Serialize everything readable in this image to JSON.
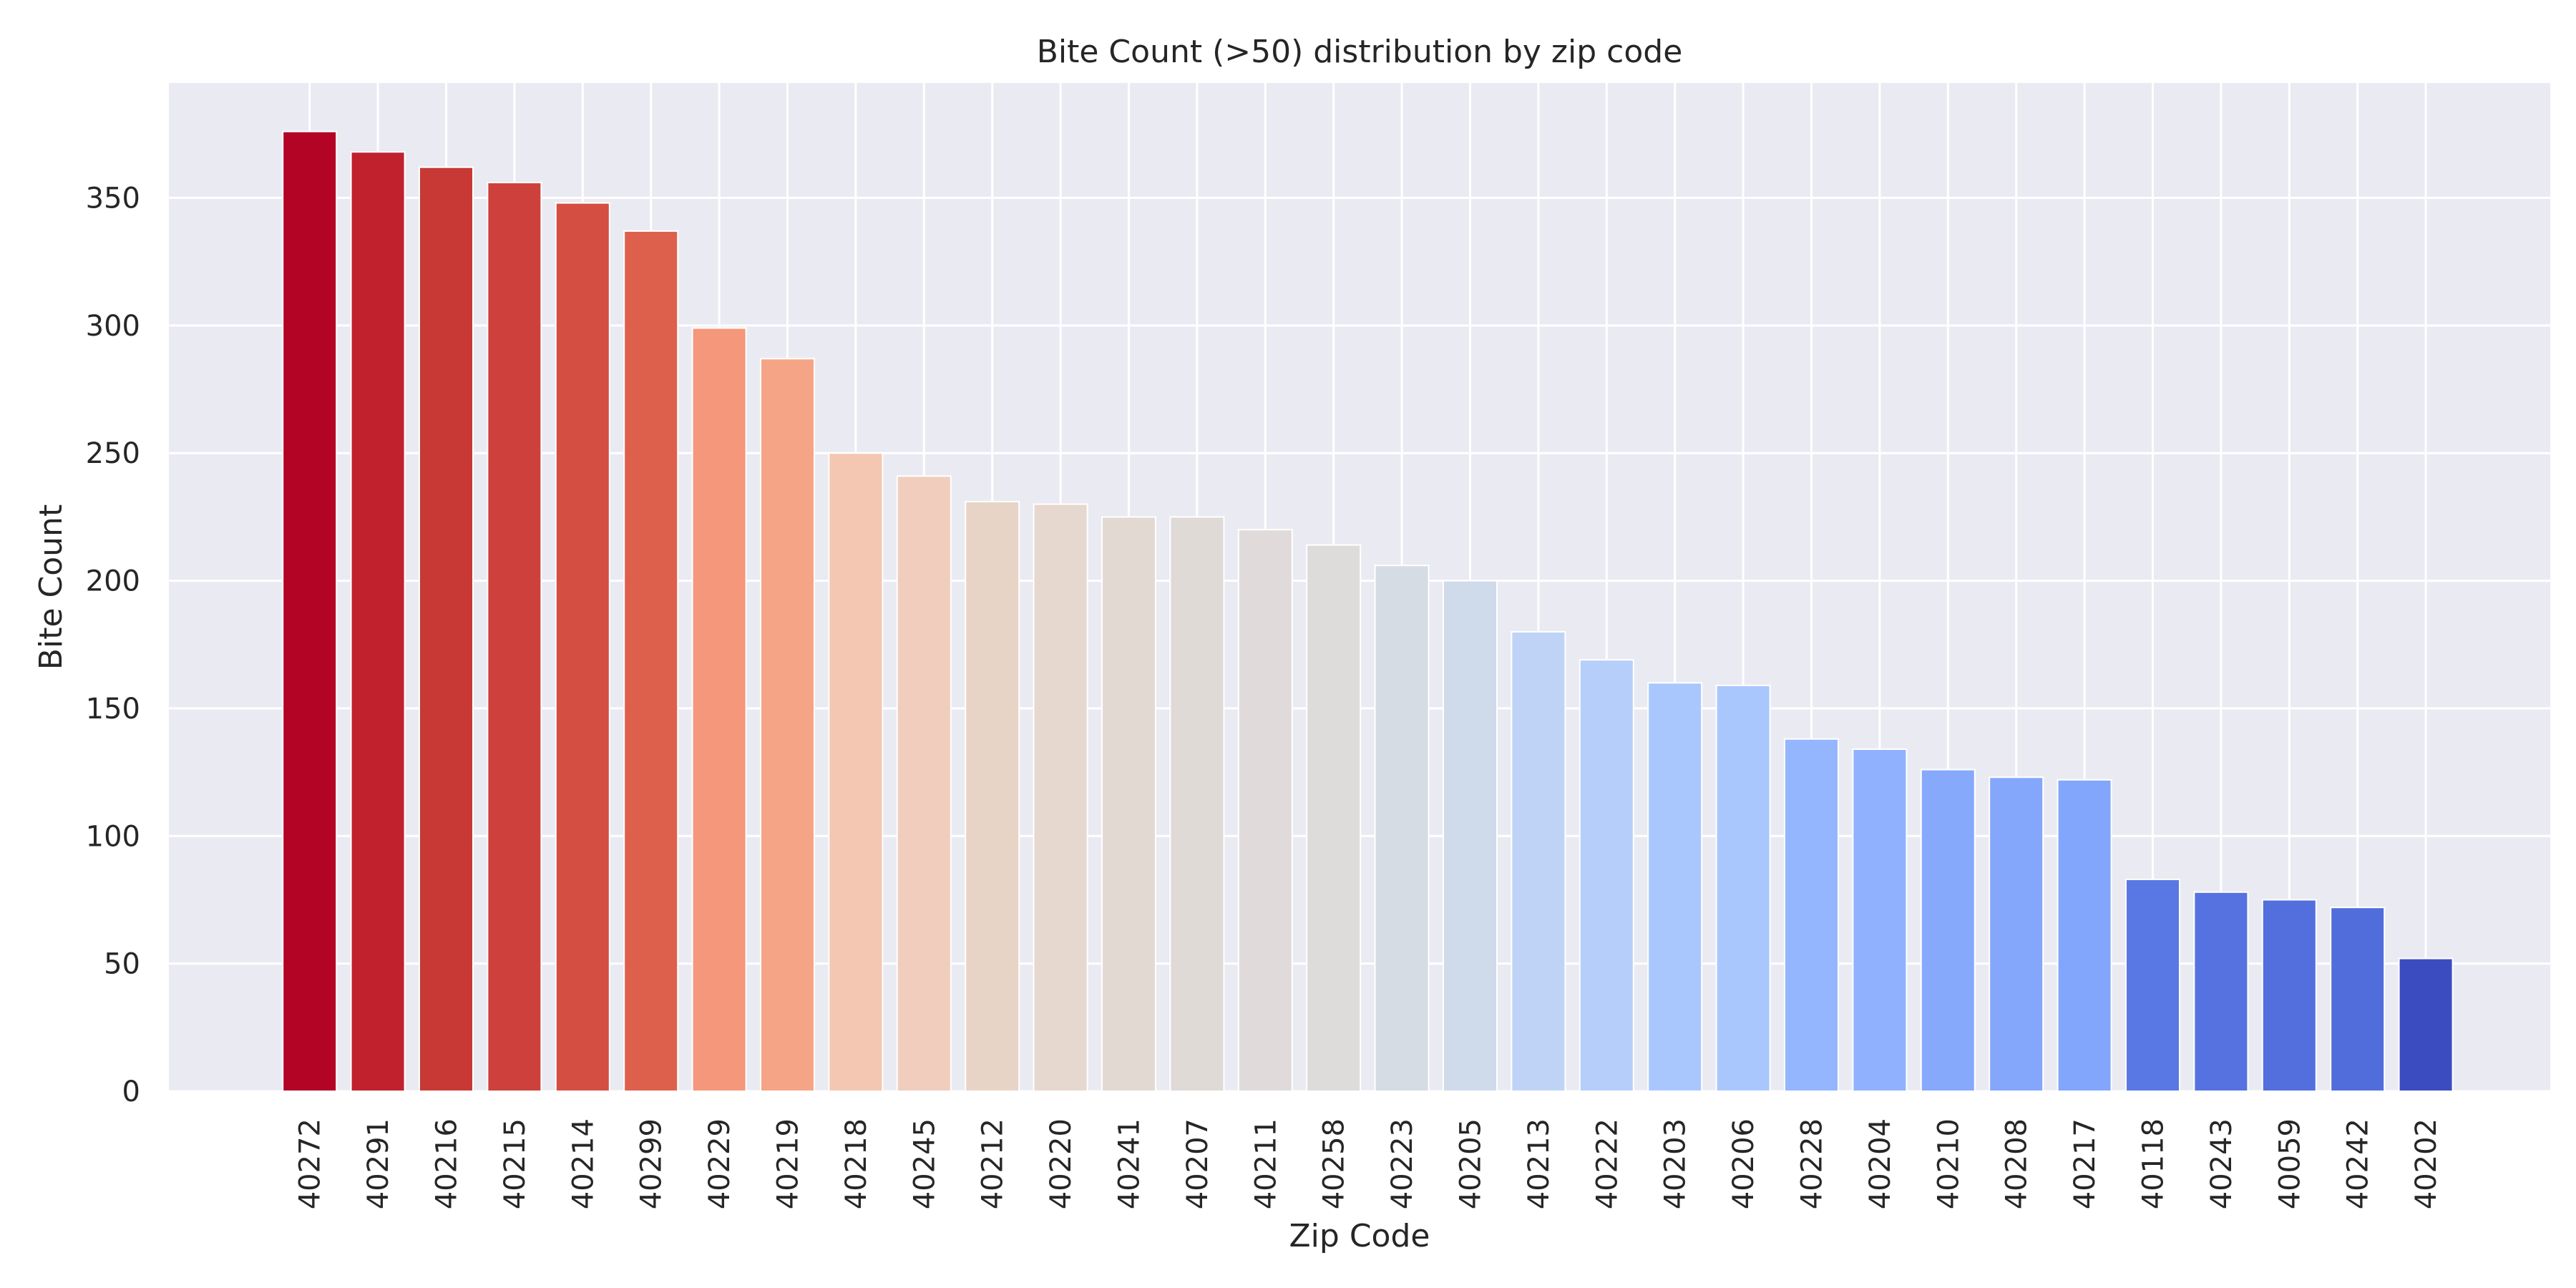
{
  "chart_data": {
    "type": "bar",
    "title": "Bite Count (>50) distribution by zip code",
    "xlabel": "Zip Code",
    "ylabel": "Bite Count",
    "ylim": [
      0,
      395
    ],
    "yticks": [
      0,
      50,
      100,
      150,
      200,
      250,
      300,
      350
    ],
    "grid": true,
    "categories": [
      "40272",
      "40291",
      "40216",
      "40215",
      "40214",
      "40299",
      "40229",
      "40219",
      "40218",
      "40245",
      "40212",
      "40220",
      "40241",
      "40207",
      "40211",
      "40258",
      "40223",
      "40205",
      "40213",
      "40222",
      "40203",
      "40206",
      "40228",
      "40204",
      "40210",
      "40208",
      "40217",
      "40118",
      "40243",
      "40059",
      "40242",
      "40202"
    ],
    "values": [
      376,
      368,
      362,
      356,
      348,
      337,
      299,
      287,
      250,
      241,
      231,
      230,
      225,
      225,
      220,
      214,
      206,
      200,
      180,
      169,
      160,
      159,
      138,
      134,
      126,
      123,
      122,
      83,
      78,
      75,
      72,
      52
    ],
    "colors": [
      "#b40426",
      "#c0212d",
      "#c83834",
      "#cd403b",
      "#d44e41",
      "#dd604d",
      "#f5977b",
      "#f5a586",
      "#f3c7b1",
      "#f0cdbd",
      "#e8d4c6",
      "#e6d7cf",
      "#e3d9d3",
      "#e0dad7",
      "#e0dada",
      "#dedcdb",
      "#d6dce4",
      "#cfdaea",
      "#bfd3f6",
      "#b6cefa",
      "#aac7fd",
      "#aac7fd",
      "#94b6ff",
      "#90b2fe",
      "#86a9fc",
      "#84a7fc",
      "#82a6fb",
      "#5a78e4",
      "#5672e0",
      "#536edd",
      "#516ddb",
      "#3b4cc0"
    ]
  }
}
